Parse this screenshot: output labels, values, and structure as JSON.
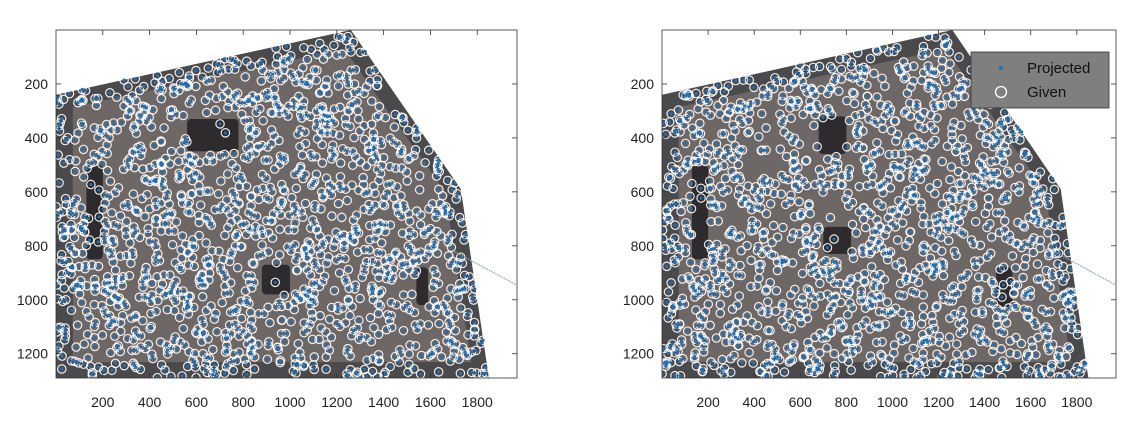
{
  "chart_data": [
    {
      "type": "scatter",
      "title": "",
      "xlabel": "",
      "ylabel": "",
      "xlim": [
        0,
        1970
      ],
      "ylim": [
        1290,
        0
      ],
      "y_reversed": true,
      "grid": false,
      "xticks": [
        200,
        400,
        600,
        800,
        1000,
        1200,
        1400,
        1600,
        1800
      ],
      "yticks": [
        200,
        400,
        600,
        800,
        1000,
        1200
      ],
      "background": "photograph of a stone building facade (perspective view)",
      "series": [
        {
          "name": "Projected",
          "marker": "dot",
          "color": "#1f6fb5",
          "count": "dense (thousands)"
        },
        {
          "name": "Given",
          "marker": "open-circle",
          "color": "#ffffff",
          "count": "dense (thousands)"
        }
      ],
      "region_outline": [
        [
          0,
          240
        ],
        [
          1260,
          0
        ],
        [
          1730,
          590
        ],
        [
          1850,
          1290
        ],
        [
          0,
          1290
        ]
      ],
      "legend": null
    },
    {
      "type": "scatter",
      "title": "",
      "xlabel": "",
      "ylabel": "",
      "xlim": [
        0,
        1970
      ],
      "ylim": [
        1290,
        0
      ],
      "y_reversed": true,
      "grid": false,
      "xticks": [
        200,
        400,
        600,
        800,
        1000,
        1200,
        1400,
        1600,
        1800
      ],
      "yticks": [
        200,
        400,
        600,
        800,
        1000,
        1200
      ],
      "background": "photograph of a stone building facade (perspective view)",
      "series": [
        {
          "name": "Projected",
          "marker": "dot",
          "color": "#1f6fb5",
          "count": "dense (thousands)"
        },
        {
          "name": "Given",
          "marker": "open-circle",
          "color": "#ffffff",
          "count": "dense (thousands)"
        }
      ],
      "region_outline": [
        [
          0,
          240
        ],
        [
          1260,
          0
        ],
        [
          1730,
          590
        ],
        [
          1850,
          1290
        ],
        [
          0,
          1290
        ]
      ],
      "legend": {
        "placement": "top-right",
        "entries": [
          "Projected",
          "Given"
        ]
      }
    }
  ],
  "colors": {
    "projected": "#1f6fb5",
    "given": "#ffffff",
    "legend_bg": "#7f7f7f",
    "facade": "#4a4a4d"
  }
}
